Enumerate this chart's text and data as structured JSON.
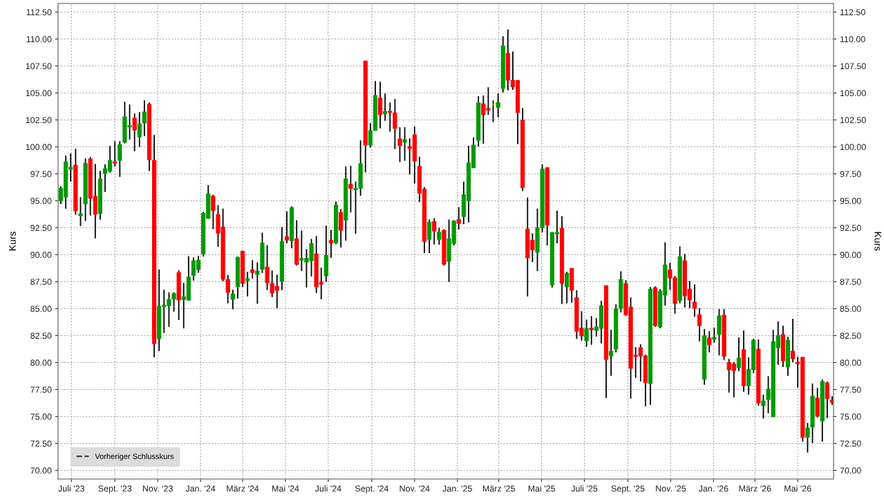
{
  "chart_data": {
    "type": "candlestick",
    "ylabel": "Kurs",
    "y2label": "Kurs",
    "grid": true,
    "legend": "bottom left",
    "xlim": [
      "2023-06-12",
      "2026-06-21"
    ],
    "xticks": [
      {
        "value": "2023-07-01",
        "label": "Juli '23"
      },
      {
        "value": "2023-09-01",
        "label": "Sept. '23"
      },
      {
        "value": "2023-11-01",
        "label": "Nov. '23"
      },
      {
        "value": "2024-01-01",
        "label": "Jan. '24"
      },
      {
        "value": "2024-03-01",
        "label": "März '24"
      },
      {
        "value": "2024-05-01",
        "label": "Mai '24"
      },
      {
        "value": "2024-07-01",
        "label": "Juli '24"
      },
      {
        "value": "2024-09-01",
        "label": "Sept. '24"
      },
      {
        "value": "2024-11-01",
        "label": "Nov. '24"
      },
      {
        "value": "2025-01-01",
        "label": "Jan. '25"
      },
      {
        "value": "2025-03-01",
        "label": "März '25"
      },
      {
        "value": "2025-05-01",
        "label": "Mai '25"
      },
      {
        "value": "2025-07-01",
        "label": "Juli '25"
      },
      {
        "value": "2025-09-01",
        "label": "Sept. '25"
      },
      {
        "value": "2025-11-01",
        "label": "Nov. '25"
      },
      {
        "value": "2026-01-01",
        "label": "Jan. '26"
      },
      {
        "value": "2026-03-01",
        "label": "März '26"
      },
      {
        "value": "2026-05-01",
        "label": "Mai '26"
      }
    ],
    "ylim": [
      69.2,
      113.3
    ],
    "yticks": [
      {
        "value": 70,
        "label": "70.00"
      },
      {
        "value": 72.5,
        "label": "72.50"
      },
      {
        "value": 75,
        "label": "75.00"
      },
      {
        "value": 77.5,
        "label": "77.50"
      },
      {
        "value": 80,
        "label": "80.00"
      },
      {
        "value": 82.5,
        "label": "82.50"
      },
      {
        "value": 85,
        "label": "85.00"
      },
      {
        "value": 87.5,
        "label": "87.50"
      },
      {
        "value": 90,
        "label": "90.00"
      },
      {
        "value": 92.5,
        "label": "92.50"
      },
      {
        "value": 95,
        "label": "95.00"
      },
      {
        "value": 97.5,
        "label": "97.50"
      },
      {
        "value": 100,
        "label": "100.00"
      },
      {
        "value": 102.5,
        "label": "102.50"
      },
      {
        "value": 105,
        "label": "105.00"
      },
      {
        "value": 107.5,
        "label": "107.50"
      },
      {
        "value": 110,
        "label": "110.00"
      },
      {
        "value": 112.5,
        "label": "112.50"
      }
    ],
    "y2lim": [
      69.2,
      113.3
    ],
    "y2ticks": [
      {
        "value": 70,
        "label": "70.00"
      },
      {
        "value": 72.5,
        "label": "72.50"
      },
      {
        "value": 75,
        "label": "75.00"
      },
      {
        "value": 77.5,
        "label": "77.50"
      },
      {
        "value": 80,
        "label": "80.00"
      },
      {
        "value": 82.5,
        "label": "82.50"
      },
      {
        "value": 85,
        "label": "85.00"
      },
      {
        "value": 87.5,
        "label": "87.50"
      },
      {
        "value": 90,
        "label": "90.00"
      },
      {
        "value": 92.5,
        "label": "92.50"
      },
      {
        "value": 95,
        "label": "95.00"
      },
      {
        "value": 97.5,
        "label": "97.50"
      },
      {
        "value": 100,
        "label": "100.00"
      },
      {
        "value": 102.5,
        "label": "102.50"
      },
      {
        "value": 105,
        "label": "105.00"
      },
      {
        "value": 107.5,
        "label": "107.50"
      },
      {
        "value": 110,
        "label": "110.00"
      },
      {
        "value": 112.5,
        "label": "112.50"
      }
    ],
    "x": [
      "2023-06-16",
      "2023-06-23",
      "2023-06-30",
      "2023-07-07",
      "2023-07-14",
      "2023-07-21",
      "2023-07-28",
      "2023-08-04",
      "2023-08-11",
      "2023-08-18",
      "2023-08-25",
      "2023-09-01",
      "2023-09-08",
      "2023-09-15",
      "2023-09-22",
      "2023-09-29",
      "2023-10-06",
      "2023-10-13",
      "2023-10-20",
      "2023-10-27",
      "2023-11-03",
      "2023-11-10",
      "2023-11-17",
      "2023-11-24",
      "2023-12-01",
      "2023-12-08",
      "2023-12-15",
      "2023-12-22",
      "2023-12-29",
      "2024-01-05",
      "2024-01-12",
      "2024-01-19",
      "2024-01-26",
      "2024-02-02",
      "2024-02-09",
      "2024-02-16",
      "2024-02-23",
      "2024-03-01",
      "2024-03-08",
      "2024-03-15",
      "2024-03-22",
      "2024-03-29",
      "2024-04-05",
      "2024-04-12",
      "2024-04-19",
      "2024-04-26",
      "2024-05-03",
      "2024-05-10",
      "2024-05-17",
      "2024-05-24",
      "2024-05-31",
      "2024-06-07",
      "2024-06-14",
      "2024-06-21",
      "2024-06-28",
      "2024-07-05",
      "2024-07-12",
      "2024-07-19",
      "2024-07-26",
      "2024-08-02",
      "2024-08-09",
      "2024-08-16",
      "2024-08-23",
      "2024-08-30",
      "2024-09-06",
      "2024-09-13",
      "2024-09-20",
      "2024-09-27",
      "2024-10-04",
      "2024-10-11",
      "2024-10-18",
      "2024-10-25",
      "2024-11-01",
      "2024-11-08",
      "2024-11-15",
      "2024-11-22",
      "2024-11-29",
      "2024-12-06",
      "2024-12-13",
      "2024-12-20",
      "2024-12-27",
      "2025-01-03",
      "2025-01-10",
      "2025-01-17",
      "2025-01-24",
      "2025-01-31",
      "2025-02-07",
      "2025-02-14",
      "2025-02-21",
      "2025-02-28",
      "2025-03-07",
      "2025-03-14",
      "2025-03-21",
      "2025-03-28",
      "2025-04-04",
      "2025-04-11",
      "2025-04-18",
      "2025-04-25",
      "2025-05-02",
      "2025-05-09",
      "2025-05-16",
      "2025-05-23",
      "2025-05-30",
      "2025-06-06",
      "2025-06-13",
      "2025-06-20",
      "2025-06-27",
      "2025-07-04",
      "2025-07-11",
      "2025-07-18",
      "2025-07-25",
      "2025-08-01",
      "2025-08-08",
      "2025-08-15",
      "2025-08-22",
      "2025-08-29",
      "2025-09-05",
      "2025-09-12",
      "2025-09-19",
      "2025-09-26",
      "2025-10-03",
      "2025-10-10",
      "2025-10-17",
      "2025-10-24",
      "2025-10-31",
      "2025-11-07",
      "2025-11-14",
      "2025-11-21",
      "2025-11-28",
      "2025-12-05",
      "2025-12-12",
      "2025-12-19",
      "2025-12-26",
      "2026-01-02",
      "2026-01-09",
      "2026-01-16",
      "2026-01-23",
      "2026-01-30",
      "2026-02-06",
      "2026-02-13",
      "2026-02-20",
      "2026-02-27",
      "2026-03-06",
      "2026-03-13",
      "2026-03-20",
      "2026-03-27",
      "2026-04-03",
      "2026-04-10",
      "2026-04-17",
      "2026-04-24",
      "2026-05-01",
      "2026-05-08",
      "2026-05-15",
      "2026-05-22",
      "2026-05-29",
      "2026-06-05",
      "2026-06-12",
      "2026-06-19"
    ],
    "ohlc": [
      [
        94.98,
        96.35,
        94.7,
        96.15
      ],
      [
        95.36,
        99.2,
        94.27,
        98.6
      ],
      [
        97.93,
        99.4,
        96.77,
        98.1
      ],
      [
        98.29,
        99.83,
        93.7,
        94.08
      ],
      [
        93.63,
        95.34,
        92.67,
        93.8
      ],
      [
        94.72,
        98.93,
        93.12,
        98.48
      ],
      [
        98.87,
        99.06,
        93.63,
        95.24
      ],
      [
        95.41,
        98.42,
        91.52,
        93.76
      ],
      [
        93.82,
        97.78,
        93.25,
        97.01
      ],
      [
        97.54,
        98.38,
        95.81,
        97.97
      ],
      [
        97.74,
        100.09,
        97.61,
        98.74
      ],
      [
        98.61,
        100.53,
        98.18,
        98.5
      ],
      [
        98.76,
        100.53,
        97.22,
        100.21
      ],
      [
        100.43,
        104.19,
        100.32,
        102.78
      ],
      [
        101.84,
        103.93,
        100.68,
        101.97
      ],
      [
        102.65,
        103.1,
        99.59,
        101.58
      ],
      [
        100.94,
        103.23,
        100.0,
        102.14
      ],
      [
        102.22,
        104.32,
        101.0,
        103.23
      ],
      [
        103.93,
        104.12,
        97.78,
        98.82
      ],
      [
        98.74,
        101.11,
        80.49,
        81.77
      ],
      [
        82.22,
        88.63,
        81.07,
        85.21
      ],
      [
        85.21,
        86.75,
        82.74,
        85.34
      ],
      [
        85.28,
        86.5,
        83.31,
        85.85
      ],
      [
        85.88,
        86.5,
        84.72,
        86.37
      ],
      [
        88.35,
        88.55,
        83.95,
        85.81
      ],
      [
        85.85,
        87.39,
        83.18,
        86.11
      ],
      [
        85.79,
        89.88,
        85.79,
        87.92
      ],
      [
        88.09,
        89.75,
        87.6,
        89.43
      ],
      [
        88.62,
        89.88,
        88.34,
        89.49
      ],
      [
        90.09,
        93.97,
        89.83,
        93.84
      ],
      [
        93.39,
        96.46,
        93.33,
        95.63
      ],
      [
        95.43,
        95.56,
        92.37,
        94.09
      ],
      [
        93.71,
        94.6,
        90.73,
        92.01
      ],
      [
        92.56,
        94.28,
        87.53,
        87.73
      ],
      [
        87.7,
        88.13,
        85.49,
        86.51
      ],
      [
        85.87,
        86.75,
        84.94,
        86.36
      ],
      [
        87.02,
        89.83,
        85.94,
        89.75
      ],
      [
        90.32,
        90.39,
        87.0,
        87.34
      ],
      [
        87.6,
        88.41,
        86.13,
        87.77
      ],
      [
        88.6,
        89.49,
        87.79,
        88.36
      ],
      [
        88.17,
        89.3,
        85.45,
        88.47
      ],
      [
        88.66,
        92.05,
        88.3,
        91.09
      ],
      [
        88.85,
        90.9,
        86.72,
        87.41
      ],
      [
        87.32,
        88.54,
        86.06,
        86.45
      ],
      [
        87.07,
        88.15,
        85.04,
        86.7
      ],
      [
        87.53,
        92.56,
        86.72,
        91.22
      ],
      [
        91.66,
        94.03,
        91.05,
        91.37
      ],
      [
        91.3,
        94.48,
        90.6,
        94.35
      ],
      [
        91.47,
        93.2,
        89.0,
        89.13
      ],
      [
        89.51,
        92.24,
        88.49,
        89.62
      ],
      [
        89.32,
        90.52,
        86.96,
        89.68
      ],
      [
        89.45,
        91.47,
        87.98,
        91.03
      ],
      [
        90.07,
        91.73,
        86.45,
        87.02
      ],
      [
        87.41,
        88.79,
        85.87,
        87.28
      ],
      [
        88.05,
        92.69,
        87.47,
        89.94
      ],
      [
        91.35,
        92.3,
        89.71,
        91.09
      ],
      [
        91.11,
        94.92,
        90.98,
        94.6
      ],
      [
        93.9,
        94.22,
        90.66,
        92.26
      ],
      [
        93.22,
        98.18,
        91.3,
        97.03
      ],
      [
        96.52,
        98.25,
        93.92,
        96.16
      ],
      [
        96.03,
        96.78,
        91.94,
        96.14
      ],
      [
        96.16,
        100.61,
        95.46,
        98.44
      ],
      [
        107.96,
        107.96,
        97.63,
        100.18
      ],
      [
        100.18,
        102.21,
        99.93,
        101.5
      ],
      [
        101.52,
        106.1,
        101.52,
        104.76
      ],
      [
        104.51,
        106.04,
        101.72,
        102.99
      ],
      [
        103.06,
        104.95,
        102.42,
        103.29
      ],
      [
        103.29,
        104.12,
        101.4,
        103.19
      ],
      [
        103.16,
        104.44,
        99.8,
        101.72
      ],
      [
        100.74,
        101.82,
        98.59,
        100.12
      ],
      [
        100.44,
        101.82,
        98.71,
        100.67
      ],
      [
        100.03,
        100.8,
        97.44,
        99.86
      ],
      [
        101.12,
        101.89,
        96.61,
        98.71
      ],
      [
        98.18,
        99.08,
        94.88,
        95.71
      ],
      [
        96.07,
        96.26,
        90.15,
        91.24
      ],
      [
        91.43,
        93.26,
        90.15,
        93.01
      ],
      [
        93.07,
        93.39,
        90.95,
        92.2
      ],
      [
        91.43,
        92.5,
        90.92,
        92.11
      ],
      [
        92.24,
        92.37,
        89.0,
        89.13
      ],
      [
        89.39,
        93.26,
        87.47,
        91.49
      ],
      [
        91.05,
        93.2,
        90.86,
        93.13
      ],
      [
        93.26,
        94.41,
        92.33,
        92.9
      ],
      [
        93.54,
        96.78,
        92.84,
        95.56
      ],
      [
        95.01,
        100.1,
        93.0,
        98.5
      ],
      [
        98.07,
        100.86,
        98.07,
        100.16
      ],
      [
        100.61,
        104.7,
        100.03,
        104.06
      ],
      [
        103.99,
        104.76,
        100.29,
        102.99
      ],
      [
        103.55,
        105.53,
        102.97,
        103.42
      ],
      [
        103.95,
        104.31,
        102.29,
        103.95
      ],
      [
        103.68,
        104.95,
        102.74,
        104.12
      ],
      [
        105.42,
        110.26,
        105.04,
        109.36
      ],
      [
        108.66,
        110.89,
        105.23,
        106.19
      ],
      [
        106.17,
        108.85,
        105.29,
        105.57
      ],
      [
        106.17,
        106.17,
        100.25,
        103.19
      ],
      [
        102.48,
        103.61,
        95.9,
        96.22
      ],
      [
        92.37,
        95.31,
        86.13,
        89.71
      ],
      [
        91.35,
        91.99,
        89.32,
        90.45
      ],
      [
        90.22,
        94.28,
        88.49,
        92.5
      ],
      [
        92.52,
        98.37,
        92.07,
        97.93
      ],
      [
        98.05,
        98.12,
        90.86,
        92.77
      ],
      [
        87.21,
        92.11,
        86.96,
        92.05
      ],
      [
        91.92,
        94.09,
        91.05,
        92.05
      ],
      [
        92.43,
        93.58,
        85.43,
        87.34
      ],
      [
        87.02,
        88.41,
        85.49,
        88.28
      ],
      [
        88.73,
        88.73,
        85.55,
        86.7
      ],
      [
        86.0,
        86.7,
        82.2,
        82.9
      ],
      [
        83.18,
        84.76,
        82.03,
        82.48
      ],
      [
        82.03,
        83.99,
        81.46,
        83.16
      ],
      [
        83.18,
        84.31,
        81.65,
        83.05
      ],
      [
        82.99,
        84.12,
        82.41,
        83.29
      ],
      [
        83.18,
        85.72,
        81.78,
        85.27
      ],
      [
        87.13,
        87.13,
        76.72,
        80.3
      ],
      [
        80.62,
        83.03,
        78.77,
        81.05
      ],
      [
        81.26,
        85.4,
        80.94,
        84.97
      ],
      [
        85.04,
        88.47,
        84.65,
        87.7
      ],
      [
        87.32,
        87.64,
        84.33,
        84.44
      ],
      [
        85.14,
        86.04,
        76.66,
        79.47
      ],
      [
        80.67,
        81.43,
        78.58,
        80.56
      ],
      [
        81.37,
        81.69,
        78.26,
        80.62
      ],
      [
        80.6,
        80.73,
        75.95,
        78.13
      ],
      [
        78.07,
        87.0,
        76.08,
        86.81
      ],
      [
        86.93,
        87.06,
        83.31,
        83.44
      ],
      [
        83.31,
        86.81,
        83.18,
        86.62
      ],
      [
        86.25,
        91.16,
        85.29,
        89.05
      ],
      [
        88.6,
        89.24,
        86.74,
        87.85
      ],
      [
        87.83,
        88.02,
        84.53,
        85.49
      ],
      [
        85.74,
        90.77,
        85.49,
        89.81
      ],
      [
        89.43,
        90.07,
        85.1,
        86.19
      ],
      [
        86.81,
        87.57,
        85.04,
        85.8
      ],
      [
        85.61,
        87.25,
        84.27,
        85.04
      ],
      [
        84.44,
        85.04,
        81.97,
        83.44
      ],
      [
        78.45,
        83.12,
        77.94,
        82.48
      ],
      [
        82.27,
        82.91,
        80.94,
        81.65
      ],
      [
        82.16,
        83.23,
        81.84,
        82.33
      ],
      [
        82.61,
        84.96,
        80.66,
        84.32
      ],
      [
        84.38,
        84.96,
        80.24,
        80.6
      ],
      [
        80.0,
        80.34,
        77.22,
        79.34
      ],
      [
        79.87,
        80.06,
        76.77,
        79.27
      ],
      [
        79.53,
        82.33,
        79.21,
        80.41
      ],
      [
        81.18,
        82.97,
        77.29,
        77.86
      ],
      [
        77.86,
        80.47,
        77.03,
        79.38
      ],
      [
        79.34,
        82.2,
        79.02,
        82.07
      ],
      [
        81.24,
        82.14,
        76.0,
        76.26
      ],
      [
        76.0,
        77.03,
        74.81,
        76.43
      ],
      [
        76.58,
        78.74,
        75.3,
        77.52
      ],
      [
        74.98,
        83.03,
        74.98,
        81.94
      ],
      [
        81.39,
        83.82,
        79.79,
        82.52
      ],
      [
        82.59,
        83.42,
        79.59,
        80.17
      ],
      [
        79.59,
        82.39,
        78.76,
        82.07
      ],
      [
        81.05,
        84.06,
        80.04,
        80.36
      ],
      [
        80.02,
        80.53,
        77.67,
        79.91
      ],
      [
        80.47,
        80.53,
        72.67,
        73.06
      ],
      [
        73.06,
        74.4,
        71.65,
        73.93
      ],
      [
        74.02,
        78.06,
        72.54,
        76.88
      ],
      [
        76.69,
        77.65,
        74.91,
        75.04
      ],
      [
        74.59,
        78.42,
        72.67,
        78.23
      ],
      [
        78.1,
        78.23,
        74.85,
        76.65
      ],
      [
        76.5,
        76.88,
        76.07,
        76.32
      ]
    ],
    "colors": [
      "#009900",
      "#009900",
      "#009900",
      "#ff0000",
      "#009900",
      "#009900",
      "#ff0000",
      "#ff0000",
      "#009900",
      "#009900",
      "#009900",
      "#ff0000",
      "#009900",
      "#009900",
      "#009900",
      "#ff0000",
      "#009900",
      "#009900",
      "#ff0000",
      "#ff0000",
      "#009900",
      "#009900",
      "#009900",
      "#009900",
      "#ff0000",
      "#009900",
      "#009900",
      "#009900",
      "#009900",
      "#009900",
      "#009900",
      "#ff0000",
      "#ff0000",
      "#ff0000",
      "#ff0000",
      "#009900",
      "#009900",
      "#ff0000",
      "#009900",
      "#ff0000",
      "#009900",
      "#009900",
      "#ff0000",
      "#ff0000",
      "#ff0000",
      "#009900",
      "#ff0000",
      "#009900",
      "#ff0000",
      "#009900",
      "#009900",
      "#009900",
      "#ff0000",
      "#ff0000",
      "#009900",
      "#ff0000",
      "#009900",
      "#ff0000",
      "#009900",
      "#ff0000",
      "#009900",
      "#009900",
      "#ff0000",
      "#009900",
      "#009900",
      "#ff0000",
      "#009900",
      "#ff0000",
      "#ff0000",
      "#ff0000",
      "#009900",
      "#ff0000",
      "#ff0000",
      "#ff0000",
      "#ff0000",
      "#009900",
      "#ff0000",
      "#009900",
      "#ff0000",
      "#009900",
      "#009900",
      "#ff0000",
      "#009900",
      "#009900",
      "#009900",
      "#009900",
      "#ff0000",
      "#ff0000",
      "#e6e600",
      "#009900",
      "#009900",
      "#ff0000",
      "#ff0000",
      "#ff0000",
      "#ff0000",
      "#ff0000",
      "#ff0000",
      "#009900",
      "#009900",
      "#ff0000",
      "#009900",
      "#009900",
      "#ff0000",
      "#009900",
      "#ff0000",
      "#ff0000",
      "#ff0000",
      "#009900",
      "#ff0000",
      "#009900",
      "#009900",
      "#ff0000",
      "#009900",
      "#009900",
      "#009900",
      "#ff0000",
      "#ff0000",
      "#ff0000",
      "#ff0000",
      "#ff0000",
      "#009900",
      "#ff0000",
      "#009900",
      "#009900",
      "#ff0000",
      "#ff0000",
      "#009900",
      "#ff0000",
      "#ff0000",
      "#ff0000",
      "#ff0000",
      "#009900",
      "#ff0000",
      "#009900",
      "#009900",
      "#ff0000",
      "#ff0000",
      "#ff0000",
      "#009900",
      "#ff0000",
      "#009900",
      "#009900",
      "#ff0000",
      "#009900",
      "#009900",
      "#009900",
      "#009900",
      "#ff0000",
      "#009900",
      "#ff0000",
      "#ff0000",
      "#ff0000",
      "#009900",
      "#009900",
      "#ff0000",
      "#009900",
      "#ff0000",
      "#ff0000"
    ],
    "series": [
      {
        "type": "line",
        "name": "Vorheriger Schlusskurs",
        "color": "#404040",
        "line_style": "dashed",
        "values": [
          null,
          null,
          null,
          null,
          null,
          null,
          null,
          null,
          null,
          null,
          null,
          null,
          null,
          null,
          null,
          null,
          null,
          null,
          null,
          null,
          null,
          null,
          null,
          null,
          null,
          null,
          null,
          null,
          null,
          null,
          null,
          null,
          null,
          null,
          null,
          null,
          null,
          null,
          null,
          null,
          null,
          null,
          null,
          null,
          null,
          null,
          null,
          null,
          null,
          null,
          null,
          null,
          null,
          null,
          null,
          null,
          null,
          null,
          null,
          null,
          null,
          null,
          null,
          null,
          null,
          null,
          null,
          null,
          null,
          null,
          null,
          null,
          null,
          null,
          null,
          null,
          null,
          null,
          null,
          null,
          null,
          null,
          null,
          null,
          null,
          null,
          null,
          null,
          null,
          null,
          null,
          null,
          null,
          null,
          null,
          null,
          null,
          null,
          null,
          null,
          null,
          null,
          null,
          null,
          null,
          null,
          null,
          null,
          null,
          null,
          null,
          null,
          null,
          null,
          null,
          null,
          null,
          null,
          null,
          null,
          null,
          null,
          null,
          null,
          null,
          null,
          null,
          null,
          null,
          null,
          null,
          null,
          null,
          null,
          null,
          null,
          null,
          null,
          null,
          null,
          null,
          null,
          null,
          null,
          null,
          null,
          null,
          null,
          null,
          null,
          null,
          null,
          null,
          null,
          null,
          null,
          null,
          null
        ]
      }
    ]
  }
}
